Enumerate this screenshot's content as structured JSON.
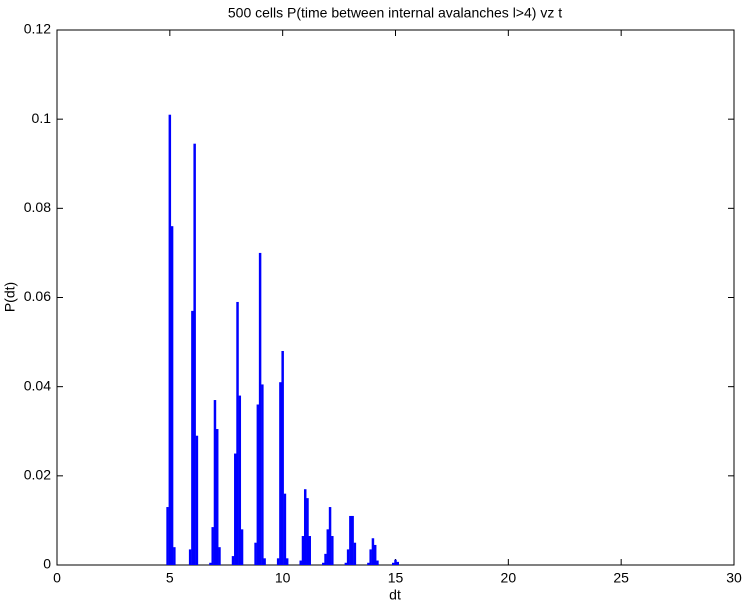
{
  "chart_data": {
    "type": "bar",
    "title": "500 cells P(time between internal avalanches l>4) vz t",
    "xlabel": "dt",
    "ylabel": "P(dt)",
    "color": "#0000ff",
    "x": [
      4.8,
      4.9,
      5.0,
      5.1,
      5.2,
      5.8,
      5.9,
      6.0,
      6.1,
      6.2,
      6.8,
      6.9,
      7.0,
      7.1,
      7.2,
      7.8,
      7.9,
      8.0,
      8.1,
      8.2,
      8.8,
      8.9,
      9.0,
      9.1,
      9.2,
      9.8,
      9.9,
      10.0,
      10.1,
      10.2,
      10.8,
      10.9,
      11.0,
      11.1,
      11.2,
      11.8,
      11.9,
      12.0,
      12.1,
      12.2,
      12.8,
      12.9,
      13.0,
      13.1,
      13.2,
      13.8,
      13.9,
      14.0,
      14.1,
      14.2,
      14.9,
      15.0,
      15.1
    ],
    "values": [
      0,
      0.013,
      0.101,
      0.076,
      0.004,
      0,
      0.0035,
      0.057,
      0.0945,
      0.029,
      0.0005,
      0.0085,
      0.037,
      0.0305,
      0.004,
      0.002,
      0.025,
      0.059,
      0.038,
      0.008,
      0.005,
      0.036,
      0.07,
      0.0405,
      0.0015,
      0.0015,
      0.041,
      0.048,
      0.016,
      0.0015,
      0.001,
      0.0065,
      0.017,
      0.015,
      0.0065,
      0.0005,
      0.0025,
      0.008,
      0.013,
      0.0065,
      0.0005,
      0.0035,
      0.011,
      0.011,
      0.005,
      0.0005,
      0.0035,
      0.006,
      0.0045,
      0.001,
      0.0005,
      0.0012,
      0.0007
    ],
    "xlim": [
      0,
      30
    ],
    "xticks": [
      0,
      5,
      10,
      15,
      20,
      25,
      30
    ],
    "ylim": [
      0,
      0.12
    ],
    "yticks": [
      0,
      0.02,
      0.04,
      0.06,
      0.08,
      0.1,
      0.12
    ]
  }
}
